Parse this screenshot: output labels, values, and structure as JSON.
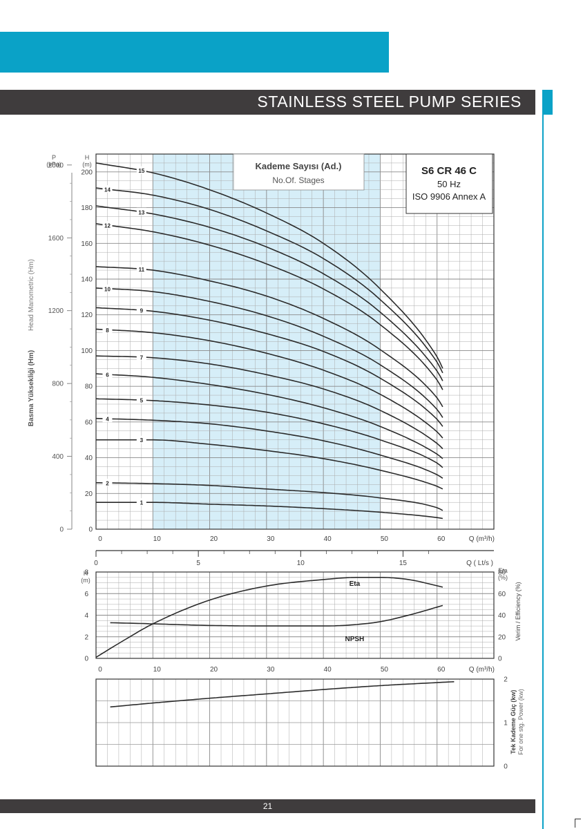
{
  "header": {
    "title": "STAINLESS STEEL PUMP SERIES"
  },
  "footer": {
    "page_number": "21"
  },
  "colors": {
    "accent": "#0aa2c7",
    "band": "#3f3c3d",
    "operating_range": "#d6eef8",
    "curve": "#2a2a2a"
  },
  "chart_data": [
    {
      "type": "line",
      "panel": "head",
      "stages_box": {
        "line1": "Kademe Sayısı (Ad.)",
        "line2": "No.Of. Stages"
      },
      "model_box": {
        "model": "S6 CR 46 C",
        "frequency": "50 Hz",
        "standard": "ISO 9906 Annex A"
      },
      "left_axis_p": {
        "unit_line1": "P",
        "unit_line2": "(kPa)",
        "ticks": [
          "2000",
          "1600",
          "1200",
          "800",
          "400",
          "0"
        ]
      },
      "left_axis_h": {
        "unit_line1": "H",
        "unit_line2": "(m)",
        "ticks": [
          "200",
          "180",
          "160",
          "140",
          "120",
          "100",
          "80",
          "60",
          "40",
          "20",
          "0"
        ]
      },
      "ylabel_tr": "Basma Yüksekliği (Hm)",
      "ylabel_en": "Head Manometric (Hm)",
      "x_axis": {
        "ticks": [
          "0",
          "10",
          "20",
          "30",
          "40",
          "50",
          "60"
        ],
        "label": "Q (m³/h)"
      },
      "xlim": [
        0,
        70
      ],
      "ylim": [
        0,
        210
      ],
      "operating_range": [
        10,
        50
      ],
      "x": [
        0,
        10,
        20,
        30,
        40,
        50,
        60,
        61
      ],
      "series": [
        {
          "name": "1",
          "values": [
            15,
            15,
            14,
            13,
            11.5,
            9.5,
            6.5,
            6
          ]
        },
        {
          "name": "2",
          "values": [
            26,
            25.5,
            24.5,
            22.5,
            20.5,
            17.5,
            12,
            10.5
          ]
        },
        {
          "name": "3",
          "values": [
            50,
            50,
            47.5,
            44,
            39.5,
            33,
            24,
            22.5
          ]
        },
        {
          "name": "4",
          "values": [
            62,
            61,
            59,
            55,
            49.5,
            41.5,
            30.5,
            28.5
          ]
        },
        {
          "name": "5",
          "values": [
            73,
            72,
            69.5,
            65.5,
            59,
            50,
            37,
            34.5
          ]
        },
        {
          "name": "6",
          "values": [
            87,
            85,
            81,
            75.5,
            68,
            57.5,
            42,
            39.5
          ]
        },
        {
          "name": "7",
          "values": [
            97,
            96,
            92.5,
            86.5,
            78.5,
            66.5,
            48,
            45
          ]
        },
        {
          "name": "8",
          "values": [
            112,
            110,
            105.5,
            98.5,
            89,
            75.5,
            54.5,
            51
          ]
        },
        {
          "name": "9",
          "values": [
            124,
            122,
            117,
            109.5,
            99.5,
            84.5,
            61.5,
            57.5
          ]
        },
        {
          "name": "10",
          "values": [
            135,
            133,
            127.5,
            119.5,
            108,
            92,
            67,
            62.5
          ]
        },
        {
          "name": "11",
          "values": [
            147,
            145,
            139,
            130.5,
            118,
            100.5,
            73.5,
            68.5
          ]
        },
        {
          "name": "12",
          "values": [
            171,
            166.5,
            159,
            148.5,
            134.5,
            114.5,
            83.5,
            78
          ]
        },
        {
          "name": "13",
          "values": [
            181,
            176.5,
            169,
            158,
            143,
            121.5,
            88.5,
            83
          ]
        },
        {
          "name": "14",
          "values": [
            191,
            187,
            179,
            167,
            151.5,
            128.5,
            93.5,
            87.5
          ]
        },
        {
          "name": "15",
          "values": [
            205,
            199.5,
            190,
            177,
            160,
            134.5,
            96.5,
            90
          ]
        }
      ]
    },
    {
      "type": "axis",
      "panel": "flow_lts",
      "ticks": [
        "0",
        "5",
        "10",
        "15"
      ],
      "label": "Q ( Lt/s )",
      "xlim": [
        0,
        19.44
      ]
    },
    {
      "type": "line",
      "panel": "npsh_efficiency",
      "left_axis": {
        "unit_line1": "H",
        "unit_line2": "(m)",
        "ticks": [
          "8",
          "6",
          "4",
          "2",
          "0"
        ]
      },
      "right_axis": {
        "unit_line1": "Eta",
        "unit_line2": "(%)",
        "ticks": [
          "80",
          "60",
          "40",
          "20",
          "0"
        ]
      },
      "ylabel_right": "Verim / Efficiency  (%)",
      "x_axis": {
        "ticks": [
          "0",
          "10",
          "20",
          "30",
          "40",
          "50",
          "60"
        ],
        "label": "Q (m³/h)"
      },
      "xlim": [
        0,
        70
      ],
      "ylim_left": [
        0,
        8
      ],
      "ylim_right": [
        0,
        80
      ],
      "series": [
        {
          "name": "Eta",
          "axis": "right",
          "x": [
            0,
            5,
            10,
            20,
            30,
            40,
            46,
            50,
            55,
            61
          ],
          "values": [
            1,
            17,
            32,
            54,
            67,
            73,
            75,
            75,
            73,
            66
          ]
        },
        {
          "name": "NPSH",
          "axis": "left",
          "x": [
            2.5,
            10,
            20,
            30,
            40,
            45,
            50,
            55,
            61
          ],
          "values": [
            3.3,
            3.2,
            3.05,
            3.0,
            3.0,
            3.1,
            3.4,
            4.0,
            4.9
          ]
        }
      ]
    },
    {
      "type": "line",
      "panel": "power",
      "right_axis": {
        "ticks": [
          "2",
          "1",
          "0"
        ]
      },
      "ylabel_tr": "Tek Kademe Güç (kw)",
      "ylabel_en": "For one stg. Power (kw)",
      "xlim": [
        0,
        70
      ],
      "ylim": [
        0,
        2
      ],
      "series": [
        {
          "name": "",
          "x": [
            2.5,
            10,
            20,
            30,
            40,
            50,
            60,
            63
          ],
          "values": [
            1.36,
            1.45,
            1.56,
            1.66,
            1.76,
            1.85,
            1.92,
            1.94
          ]
        }
      ]
    }
  ]
}
